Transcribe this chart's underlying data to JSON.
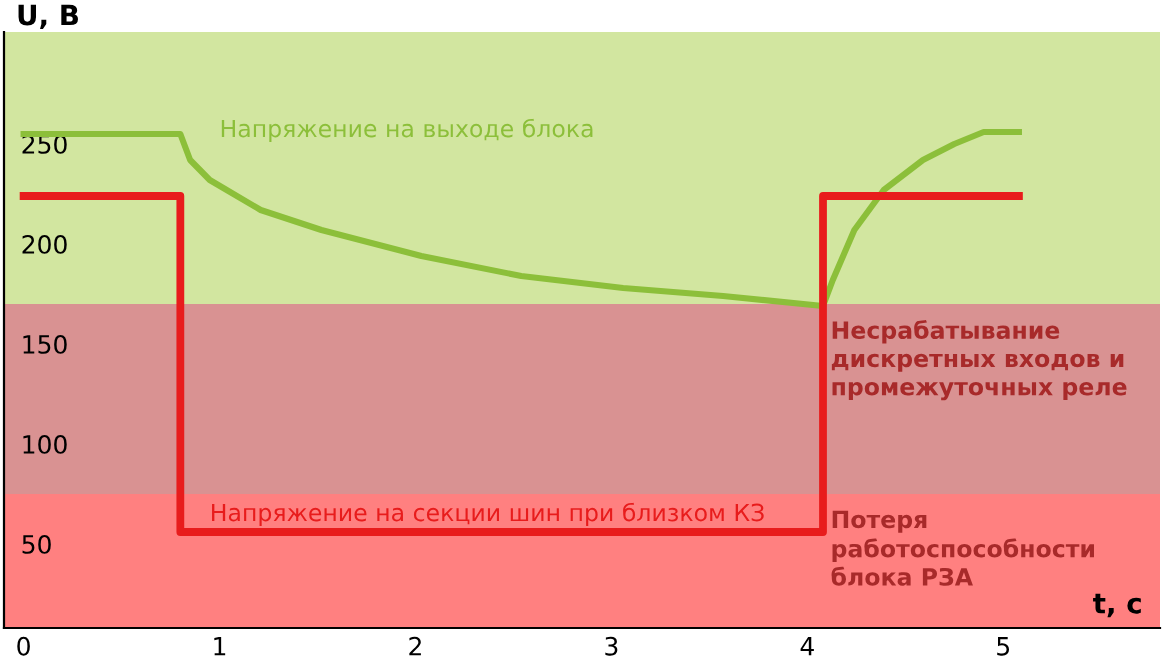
{
  "chart_data": {
    "type": "line",
    "ylabel": "U, B",
    "xlabel": "t, c",
    "xlim": [
      -0.1,
      5.8
    ],
    "xticks": [
      0,
      1,
      2,
      3,
      4,
      5
    ],
    "ylim": [
      8,
      306
    ],
    "yticks": [
      50,
      100,
      150,
      200,
      250
    ],
    "grid": false,
    "legend": false,
    "marker": "none",
    "line_style": "solid",
    "series": [
      {
        "name": "Напряжение на выходе блока",
        "color": "#8cbf3a",
        "x": [
          0,
          0.8,
          0.85,
          0.95,
          1.21,
          1.52,
          2.03,
          2.54,
          3.06,
          3.57,
          4.08,
          4.13,
          4.24,
          4.39,
          4.59,
          4.75,
          4.9,
          5.08
        ],
        "values": [
          255,
          255,
          242,
          232,
          217,
          207,
          194,
          184,
          178,
          174,
          169,
          182,
          207,
          227,
          242,
          250,
          256,
          256
        ]
      },
      {
        "name": "Напряжение на секции шин при близком КЗ",
        "color": "#e81c1c",
        "x": [
          0,
          0.8,
          0.8,
          4.08,
          4.08,
          5.08
        ],
        "values": [
          224,
          224,
          56,
          56,
          224,
          224
        ]
      }
    ],
    "bands": [
      {
        "axis": "y",
        "from": 170,
        "to": 306,
        "label": null,
        "color": "#d2e6a0"
      },
      {
        "axis": "y",
        "from": 75,
        "to": 170,
        "label": "Несрабатывание\nдискретных входов и\nпромежуточных реле",
        "color": "#d99292"
      },
      {
        "axis": "y",
        "from": 8,
        "to": 75,
        "label": "Потеря\nработоспособности\nблока РЗА",
        "color": "#ff8080"
      }
    ]
  }
}
